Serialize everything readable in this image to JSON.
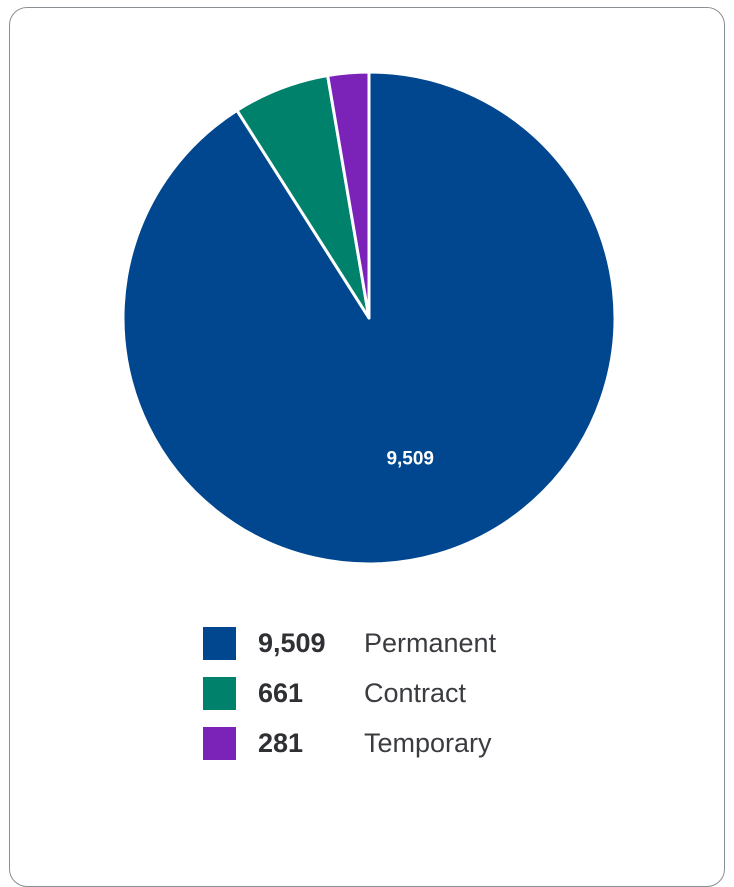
{
  "chart_data": {
    "type": "pie",
    "slices": [
      {
        "label": "Permanent",
        "value": 9509,
        "value_label": "9,509",
        "color": "#00478f",
        "show_data_label": true
      },
      {
        "label": "Contract",
        "value": 661,
        "value_label": "661",
        "color": "#00816b",
        "show_data_label": false
      },
      {
        "label": "Temporary",
        "value": 281,
        "value_label": "281",
        "color": "#7b22b8",
        "show_data_label": false
      }
    ],
    "legend_position": "bottom",
    "title": ""
  }
}
